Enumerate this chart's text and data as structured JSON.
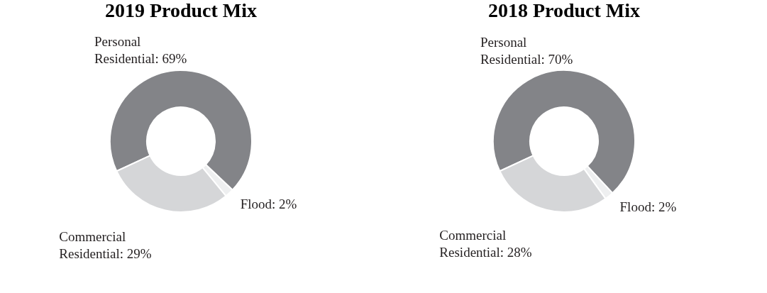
{
  "chart_data": [
    {
      "type": "donut",
      "title": "2019 Product Mix",
      "categories": [
        "Personal Residential",
        "Flood",
        "Commercial Residential"
      ],
      "values": [
        69,
        2,
        29
      ],
      "value_labels": [
        "69%",
        "2%",
        "29%"
      ],
      "colors": [
        "#838488",
        "#eeeff0",
        "#d5d6d8"
      ],
      "legend": false
    },
    {
      "type": "donut",
      "title": "2018 Product Mix",
      "categories": [
        "Personal Residential",
        "Flood",
        "Commercial Residential"
      ],
      "values": [
        70,
        2,
        28
      ],
      "value_labels": [
        "70%",
        "2%",
        "28%"
      ],
      "colors": [
        "#838488",
        "#eeeff0",
        "#d5d6d8"
      ],
      "legend": false
    }
  ]
}
